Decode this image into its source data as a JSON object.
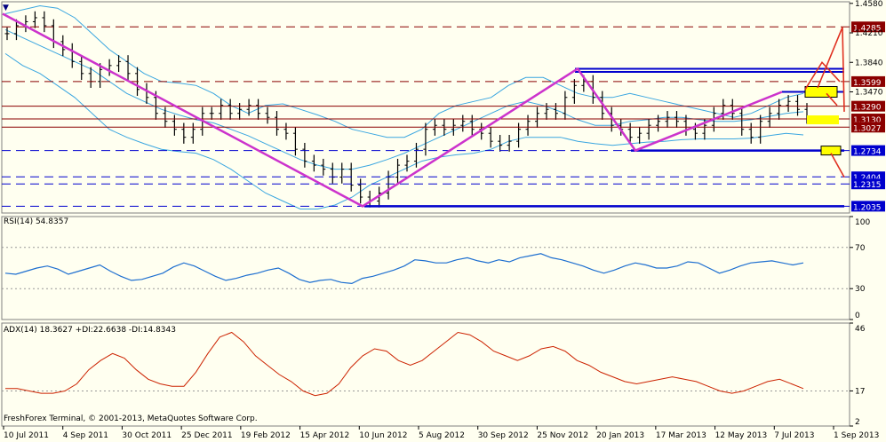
{
  "chart_data": {
    "type": "line",
    "symbol_marker": "▼",
    "x_ticks": [
      "10 Jul 2011",
      "4 Sep 2011",
      "30 Oct 2011",
      "25 Dec 2011",
      "19 Feb 2012",
      "15 Apr 2012",
      "10 Jun 2012",
      "5 Aug 2012",
      "30 Sep 2012",
      "25 Nov 2012",
      "20 Jan 2013",
      "17 Mar 2013",
      "12 May 2013",
      "7 Jul 2013",
      "1 Sep 2013"
    ],
    "price_panel": {
      "y_ticks": [
        "1.4580",
        "1.4210",
        "1.3840",
        "1.3470"
      ],
      "ylim": [
        1.195,
        1.46
      ],
      "level_labels": [
        {
          "value": "1.4285",
          "y": 1.4285,
          "color": "#8b0000"
        },
        {
          "value": "1.3599",
          "y": 1.3599,
          "color": "#8b0000"
        },
        {
          "value": "1.3290",
          "y": 1.329,
          "color": "#8b0000"
        },
        {
          "value": "1.3130",
          "y": 1.313,
          "color": "#8b0000"
        },
        {
          "value": "1.3027",
          "y": 1.3027,
          "color": "#8b0000"
        },
        {
          "value": "1.2734",
          "y": 1.2734,
          "color": "#0000cd"
        },
        {
          "value": "1.2404",
          "y": 1.2404,
          "color": "#0000cd"
        },
        {
          "value": "1.2315",
          "y": 1.2315,
          "color": "#0000cd"
        },
        {
          "value": "1.2035",
          "y": 1.2035,
          "color": "#0000cd"
        }
      ],
      "price_bars": [
        1.42,
        1.43,
        1.435,
        1.44,
        1.43,
        1.41,
        1.4,
        1.385,
        1.37,
        1.36,
        1.375,
        1.38,
        1.385,
        1.37,
        1.35,
        1.34,
        1.32,
        1.31,
        1.3,
        1.29,
        1.3,
        1.32,
        1.32,
        1.33,
        1.32,
        1.325,
        1.33,
        1.32,
        1.315,
        1.3,
        1.295,
        1.275,
        1.26,
        1.255,
        1.25,
        1.24,
        1.25,
        1.23,
        1.215,
        1.21,
        1.22,
        1.24,
        1.255,
        1.26,
        1.275,
        1.3,
        1.305,
        1.3,
        1.305,
        1.31,
        1.3,
        1.295,
        1.285,
        1.28,
        1.285,
        1.3,
        1.31,
        1.32,
        1.325,
        1.32,
        1.34,
        1.355,
        1.36,
        1.34,
        1.32,
        1.305,
        1.3,
        1.29,
        1.295,
        1.305,
        1.31,
        1.315,
        1.31,
        1.3,
        1.295,
        1.305,
        1.32,
        1.33,
        1.32,
        1.3,
        1.29,
        1.31,
        1.32,
        1.33,
        1.335,
        1.325,
        1.315
      ],
      "bollinger_upper": [
        1.445,
        1.45,
        1.455,
        1.452,
        1.44,
        1.42,
        1.4,
        1.385,
        1.37,
        1.36,
        1.358,
        1.355,
        1.345,
        1.33,
        1.32,
        1.33,
        1.332,
        1.325,
        1.318,
        1.31,
        1.3,
        1.295,
        1.29,
        1.29,
        1.3,
        1.32,
        1.33,
        1.335,
        1.34,
        1.355,
        1.365,
        1.365,
        1.355,
        1.345,
        1.34,
        1.34,
        1.345,
        1.34,
        1.335,
        1.33,
        1.325,
        1.32,
        1.315,
        1.32,
        1.33,
        1.34,
        1.345
      ],
      "bollinger_middle": [
        1.425,
        1.415,
        1.405,
        1.395,
        1.385,
        1.375,
        1.36,
        1.345,
        1.335,
        1.325,
        1.318,
        1.312,
        1.308,
        1.3,
        1.292,
        1.282,
        1.272,
        1.262,
        1.255,
        1.25,
        1.25,
        1.255,
        1.262,
        1.27,
        1.28,
        1.29,
        1.3,
        1.31,
        1.32,
        1.33,
        1.335,
        1.33,
        1.322,
        1.312,
        1.305,
        1.305,
        1.31,
        1.312,
        1.315,
        1.315,
        1.312,
        1.31,
        1.31,
        1.312,
        1.316,
        1.32,
        1.322
      ],
      "bollinger_lower": [
        1.395,
        1.38,
        1.37,
        1.355,
        1.34,
        1.32,
        1.3,
        1.29,
        1.282,
        1.275,
        1.272,
        1.27,
        1.262,
        1.25,
        1.235,
        1.22,
        1.21,
        1.2,
        1.2,
        1.205,
        1.215,
        1.23,
        1.24,
        1.25,
        1.26,
        1.265,
        1.268,
        1.27,
        1.275,
        1.285,
        1.29,
        1.29,
        1.29,
        1.285,
        1.282,
        1.28,
        1.282,
        1.284,
        1.285,
        1.287,
        1.288,
        1.288,
        1.288,
        1.289,
        1.292,
        1.295,
        1.293
      ]
    },
    "rsi_panel": {
      "label": "RSI(14) 54.8357",
      "y_ticks": [
        "100",
        "70",
        "30",
        "0"
      ],
      "ylim": [
        0,
        100
      ],
      "values": [
        45,
        44,
        47,
        50,
        52,
        49,
        44,
        47,
        50,
        53,
        47,
        42,
        38,
        39,
        42,
        45,
        51,
        55,
        52,
        47,
        42,
        38,
        40,
        43,
        45,
        48,
        50,
        45,
        39,
        36,
        38,
        39,
        36,
        35,
        40,
        42,
        45,
        48,
        52,
        58,
        57,
        55,
        55,
        58,
        60,
        57,
        55,
        58,
        56,
        60,
        62,
        64,
        60,
        58,
        55,
        52,
        48,
        45,
        48,
        52,
        55,
        53,
        50,
        50,
        52,
        56,
        55,
        50,
        45,
        48,
        52,
        55,
        56,
        57,
        55,
        53,
        55
      ]
    },
    "adx_panel": {
      "label": "ADX(14) 18.3627 +DI:22.6638 -DI:14.8343",
      "y_ticks": [
        "46",
        "17",
        "2"
      ],
      "ylim": [
        2,
        46
      ],
      "adx": [
        18,
        18,
        17,
        16,
        16,
        17,
        20,
        26,
        30,
        33,
        31,
        26,
        22,
        20,
        19,
        19,
        25,
        33,
        40,
        42,
        38,
        32,
        28,
        24,
        21,
        17,
        15,
        16,
        20,
        27,
        32,
        35,
        34,
        30,
        28,
        30,
        34,
        38,
        42,
        41,
        38,
        34,
        32,
        30,
        32,
        35,
        36,
        34,
        30,
        28,
        25,
        23,
        21,
        20,
        21,
        22,
        23,
        22,
        21,
        19,
        17,
        16,
        17,
        19,
        21,
        22,
        20,
        18
      ]
    }
  },
  "footer": {
    "copyright": "FreshForex Terminal, © 2001-2013, MetaQuotes Software Corp."
  }
}
